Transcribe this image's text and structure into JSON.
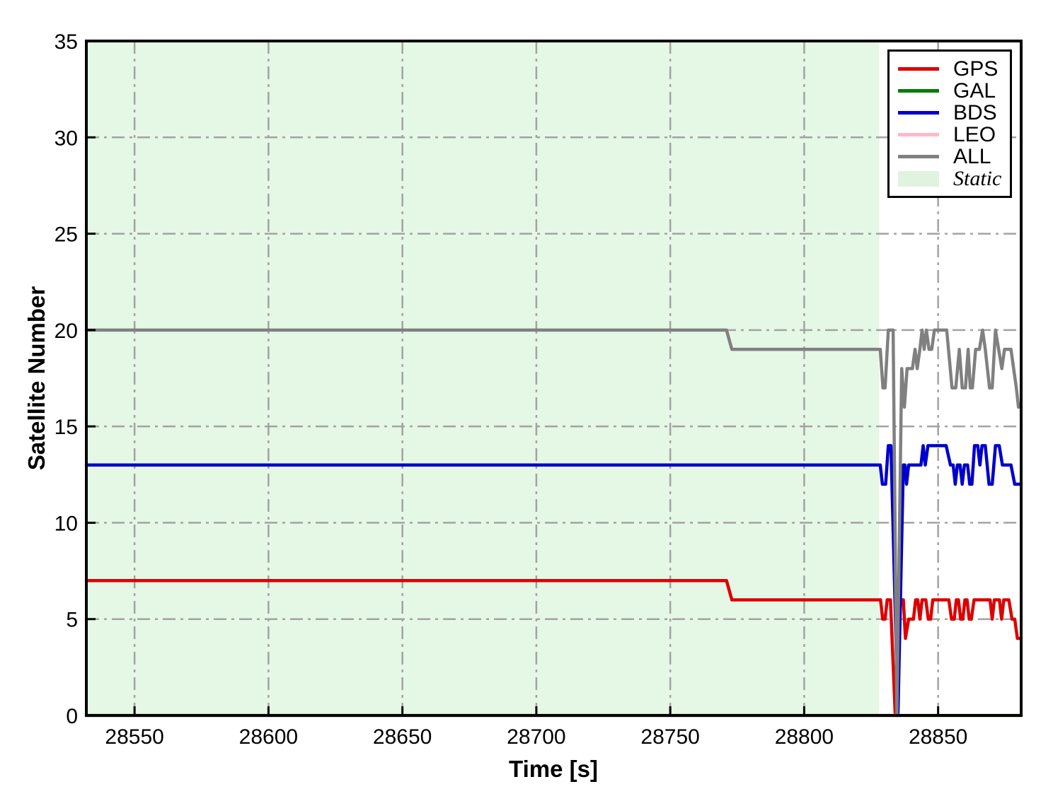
{
  "chart_data": {
    "type": "line",
    "title": "",
    "xlabel": "Time [s]",
    "ylabel": "Satellite Number",
    "xlim": [
      28532,
      28881
    ],
    "ylim": [
      0,
      35
    ],
    "xticks": [
      28550,
      28600,
      28650,
      28700,
      28750,
      28800,
      28850
    ],
    "yticks": [
      0,
      5,
      10,
      15,
      20,
      25,
      30,
      35
    ],
    "grid": {
      "show": true,
      "style": "dash-dot",
      "color": "#a3a3a3"
    },
    "frame_color": "#000000",
    "static_region": {
      "label": "Static",
      "start": 28532,
      "end": 28828,
      "color": "#e5f7e5"
    },
    "legend": {
      "position": "upper-right",
      "entries": [
        {
          "label": "GPS",
          "color": "#dd0000",
          "type": "line",
          "italic": false
        },
        {
          "label": "GAL",
          "color": "#007d00",
          "type": "line",
          "italic": false
        },
        {
          "label": "BDS",
          "color": "#0000cc",
          "type": "line",
          "italic": false
        },
        {
          "label": "LEO",
          "color": "#ffb9c6",
          "type": "line",
          "italic": false
        },
        {
          "label": "ALL",
          "color": "#808080",
          "type": "line",
          "italic": false
        },
        {
          "label": "Static",
          "color": "#dff3df",
          "type": "patch",
          "italic": true
        }
      ]
    },
    "series": [
      {
        "name": "GPS",
        "color": "#dd0000",
        "points": [
          [
            28532,
            7
          ],
          [
            28771,
            7
          ],
          [
            28773,
            6
          ],
          [
            28828.5,
            6
          ],
          [
            28829.3,
            5
          ],
          [
            28830.2,
            5
          ],
          [
            28831,
            6
          ],
          [
            28832.2,
            6
          ],
          [
            28834,
            0
          ],
          [
            28836,
            6
          ],
          [
            28837,
            6
          ],
          [
            28837.8,
            4
          ],
          [
            28839,
            5
          ],
          [
            28840.8,
            5
          ],
          [
            28841.6,
            6
          ],
          [
            28842.4,
            6
          ],
          [
            28843.2,
            5
          ],
          [
            28844,
            6
          ],
          [
            28845.4,
            6
          ],
          [
            28846.3,
            5
          ],
          [
            28847.2,
            5
          ],
          [
            28848,
            6
          ],
          [
            28854,
            6
          ],
          [
            28855,
            5
          ],
          [
            28856,
            5
          ],
          [
            28856.8,
            6
          ],
          [
            28857.6,
            6
          ],
          [
            28858.4,
            5
          ],
          [
            28859.2,
            5
          ],
          [
            28860,
            6
          ],
          [
            28860.8,
            6
          ],
          [
            28861.6,
            5
          ],
          [
            28862.4,
            5
          ],
          [
            28863.4,
            6
          ],
          [
            28869.4,
            6
          ],
          [
            28870.2,
            5
          ],
          [
            28871,
            6
          ],
          [
            28872.9,
            6
          ],
          [
            28873.7,
            5
          ],
          [
            28874.5,
            6
          ],
          [
            28876.4,
            6
          ],
          [
            28877.6,
            5
          ],
          [
            28878.6,
            5
          ],
          [
            28879.6,
            4
          ],
          [
            28881,
            4
          ]
        ]
      },
      {
        "name": "GAL",
        "color": "#007d00",
        "points": [
          [
            28532,
            0
          ],
          [
            28881,
            0
          ]
        ]
      },
      {
        "name": "BDS",
        "color": "#0000cc",
        "points": [
          [
            28532,
            13
          ],
          [
            28828.4,
            13
          ],
          [
            28829.2,
            12
          ],
          [
            28830.4,
            12
          ],
          [
            28831.4,
            14
          ],
          [
            28832.4,
            14
          ],
          [
            28835,
            0
          ],
          [
            28837,
            13
          ],
          [
            28837.6,
            13
          ],
          [
            28838.2,
            12
          ],
          [
            28839,
            13
          ],
          [
            28843.6,
            13
          ],
          [
            28844.4,
            14
          ],
          [
            28845.2,
            13
          ],
          [
            28846.2,
            14
          ],
          [
            28853,
            14
          ],
          [
            28854.6,
            13
          ],
          [
            28855.6,
            13
          ],
          [
            28856.4,
            12
          ],
          [
            28857.2,
            13
          ],
          [
            28858.2,
            13
          ],
          [
            28859,
            12
          ],
          [
            28859.8,
            13
          ],
          [
            28861,
            13
          ],
          [
            28861.8,
            12
          ],
          [
            28862.6,
            12
          ],
          [
            28863.6,
            14
          ],
          [
            28864.8,
            14
          ],
          [
            28865.6,
            13
          ],
          [
            28866.4,
            14
          ],
          [
            28867.6,
            14
          ],
          [
            28869,
            12
          ],
          [
            28870.2,
            12
          ],
          [
            28871.4,
            14
          ],
          [
            28872.8,
            14
          ],
          [
            28874,
            13
          ],
          [
            28877.2,
            13
          ],
          [
            28878.6,
            12
          ],
          [
            28881,
            12
          ]
        ]
      },
      {
        "name": "LEO",
        "color": "#ffb9c6",
        "points": [
          [
            28532,
            0
          ],
          [
            28881,
            0
          ]
        ]
      },
      {
        "name": "ALL",
        "color": "#808080",
        "points": [
          [
            28532,
            20
          ],
          [
            28771,
            20
          ],
          [
            28773,
            19
          ],
          [
            28828.4,
            19
          ],
          [
            28829.4,
            17
          ],
          [
            28830.2,
            17
          ],
          [
            28831.4,
            20
          ],
          [
            28833.2,
            20
          ],
          [
            28834.6,
            0
          ],
          [
            28836.4,
            18
          ],
          [
            28837.4,
            16
          ],
          [
            28838.4,
            18
          ],
          [
            28840.4,
            18
          ],
          [
            28841.4,
            19
          ],
          [
            28842.2,
            18
          ],
          [
            28843.2,
            19
          ],
          [
            28844,
            20
          ],
          [
            28844.8,
            19
          ],
          [
            28845.6,
            20
          ],
          [
            28846.6,
            19
          ],
          [
            28847.6,
            19
          ],
          [
            28848.6,
            20
          ],
          [
            28853.2,
            20
          ],
          [
            28855.2,
            17
          ],
          [
            28856.6,
            17
          ],
          [
            28857.9,
            19
          ],
          [
            28859,
            17
          ],
          [
            28860.2,
            17
          ],
          [
            28861.2,
            19
          ],
          [
            28862,
            17
          ],
          [
            28862.8,
            17
          ],
          [
            28864,
            19
          ],
          [
            28865.4,
            19
          ],
          [
            28866.6,
            20
          ],
          [
            28867.6,
            19
          ],
          [
            28869.2,
            17
          ],
          [
            28870.2,
            17
          ],
          [
            28871.4,
            20
          ],
          [
            28872.6,
            19
          ],
          [
            28873.8,
            18
          ],
          [
            28874.8,
            19
          ],
          [
            28877.2,
            19
          ],
          [
            28878.2,
            18
          ],
          [
            28879.2,
            17
          ],
          [
            28880,
            16
          ],
          [
            28881,
            16
          ]
        ]
      }
    ]
  }
}
